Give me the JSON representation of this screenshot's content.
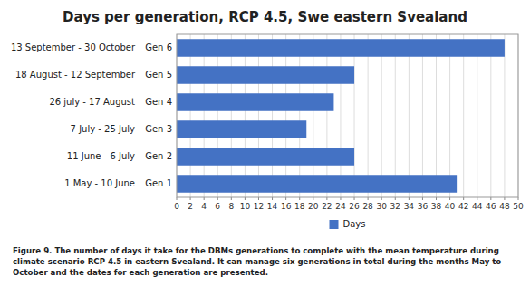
{
  "chart_data": {
    "type": "bar",
    "orientation": "horizontal",
    "title": "Days per generation, RCP 4.5, Swe eastern Svealand",
    "categories": [
      "Gen 1",
      "Gen 2",
      "Gen 3",
      "Gen 4",
      "Gen 5",
      "Gen 6"
    ],
    "annotations": [
      "1 May - 10 June",
      "11 June - 6 July",
      "7 July - 25 July",
      "26 july - 17 August",
      "18 August - 12 September",
      "13 September - 30 October"
    ],
    "series": [
      {
        "name": "Days",
        "color": "#4472C4",
        "values": [
          41,
          26,
          19,
          23,
          26,
          48
        ]
      }
    ],
    "xlim": [
      0,
      50
    ],
    "xticks": [
      0,
      2,
      4,
      6,
      8,
      10,
      12,
      14,
      16,
      18,
      20,
      22,
      24,
      26,
      28,
      30,
      32,
      34,
      36,
      38,
      40,
      42,
      44,
      46,
      48,
      50
    ],
    "grid": true,
    "caption": "Figure 9. The number of days it take for the DBMs generations to complete with the mean temperature during\nclimate scenario RCP 4.5 in eastern Svealand. It can manage six generations in total during the months May to\nOctober and the dates for each generation are presented."
  }
}
